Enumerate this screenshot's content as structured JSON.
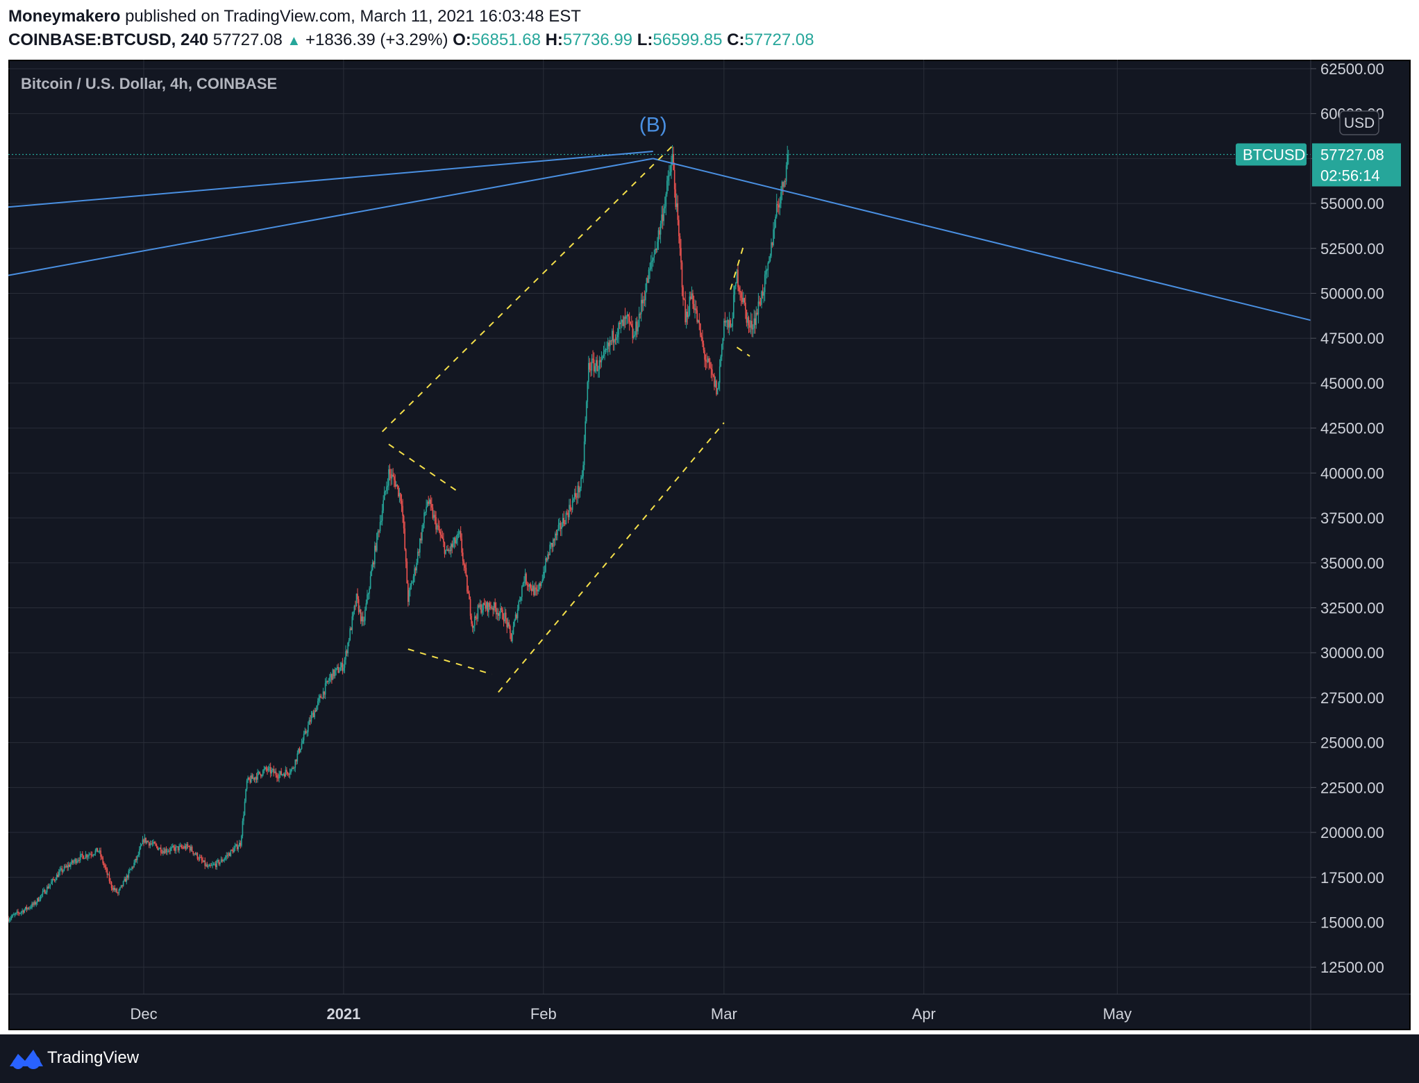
{
  "header": {
    "author": "Moneymakero",
    "published_text": "published on TradingView.com, March 11, 2021 16:03:48 EST",
    "symbol": "COINBASE:BTCUSD, 240",
    "last_price": "57727.08",
    "change": "+1836.39 (+3.29%)",
    "open_label": "O:",
    "open_value": "56851.68",
    "high_label": "H:",
    "high_value": "57736.99",
    "low_label": "L:",
    "low_value": "56599.85",
    "close_label": "C:",
    "close_value": "57727.08"
  },
  "footer": {
    "brand": "TradingView"
  },
  "colors": {
    "background": "#131722",
    "grid": "#2a2e39",
    "up": "#26a69a",
    "down": "#ef5350",
    "trendline": "#4a90e2",
    "pattern": "#f5e04a",
    "text": "#d1d4dc"
  },
  "chart_data": {
    "type": "candlestick",
    "title": "Bitcoin / U.S. Dollar, 4h, COINBASE",
    "currency": "USD",
    "ylim": [
      11000,
      63000
    ],
    "xlim": [
      "2020-11-10",
      "2021-05-31"
    ],
    "y_ticks": [
      "12500.00",
      "15000.00",
      "17500.00",
      "20000.00",
      "22500.00",
      "25000.00",
      "27500.00",
      "30000.00",
      "32500.00",
      "35000.00",
      "37500.00",
      "40000.00",
      "42500.00",
      "45000.00",
      "47500.00",
      "50000.00",
      "52500.00",
      "55000.00",
      "57500.00",
      "60000.00",
      "62500.00"
    ],
    "x_ticks": [
      {
        "label": "Dec",
        "date": "2020-12-01"
      },
      {
        "label": "2021",
        "date": "2021-01-01"
      },
      {
        "label": "Feb",
        "date": "2021-02-01"
      },
      {
        "label": "Mar",
        "date": "2021-03-01"
      },
      {
        "label": "Apr",
        "date": "2021-04-01"
      },
      {
        "label": "May",
        "date": "2021-05-01"
      }
    ],
    "price_keypoints": [
      [
        "2020-11-10",
        15200
      ],
      [
        "2020-11-14",
        16000
      ],
      [
        "2020-11-18",
        17800
      ],
      [
        "2020-11-21",
        18600
      ],
      [
        "2020-11-24",
        19000
      ],
      [
        "2020-11-26",
        17000
      ],
      [
        "2020-11-27",
        16600
      ],
      [
        "2020-11-30",
        18600
      ],
      [
        "2020-12-01",
        19600
      ],
      [
        "2020-12-04",
        19000
      ],
      [
        "2020-12-08",
        19200
      ],
      [
        "2020-12-11",
        18000
      ],
      [
        "2020-12-13",
        18400
      ],
      [
        "2020-12-16",
        19400
      ],
      [
        "2020-12-17",
        22800
      ],
      [
        "2020-12-20",
        23500
      ],
      [
        "2020-12-22",
        23200
      ],
      [
        "2020-12-24",
        23500
      ],
      [
        "2020-12-27",
        26400
      ],
      [
        "2020-12-30",
        28700
      ],
      [
        "2021-01-01",
        29300
      ],
      [
        "2021-01-03",
        33000
      ],
      [
        "2021-01-04",
        31500
      ],
      [
        "2021-01-06",
        36000
      ],
      [
        "2021-01-08",
        40000
      ],
      [
        "2021-01-09",
        39500
      ],
      [
        "2021-01-10",
        38500
      ],
      [
        "2021-01-11",
        33000
      ],
      [
        "2021-01-12",
        34500
      ],
      [
        "2021-01-14",
        38500
      ],
      [
        "2021-01-15",
        37500
      ],
      [
        "2021-01-17",
        35500
      ],
      [
        "2021-01-19",
        36500
      ],
      [
        "2021-01-21",
        31500
      ],
      [
        "2021-01-22",
        32500
      ],
      [
        "2021-01-24",
        32600
      ],
      [
        "2021-01-26",
        32000
      ],
      [
        "2021-01-27",
        30800
      ],
      [
        "2021-01-29",
        34200
      ],
      [
        "2021-01-31",
        33200
      ],
      [
        "2021-02-02",
        35800
      ],
      [
        "2021-02-05",
        38000
      ],
      [
        "2021-02-07",
        39500
      ],
      [
        "2021-02-08",
        46000
      ],
      [
        "2021-02-10",
        46000
      ],
      [
        "2021-02-12",
        47800
      ],
      [
        "2021-02-14",
        48500
      ],
      [
        "2021-02-15",
        47500
      ],
      [
        "2021-02-17",
        50500
      ],
      [
        "2021-02-19",
        53500
      ],
      [
        "2021-02-21",
        57500
      ],
      [
        "2021-02-22",
        53000
      ],
      [
        "2021-02-23",
        48500
      ],
      [
        "2021-02-24",
        50000
      ],
      [
        "2021-02-26",
        46500
      ],
      [
        "2021-02-28",
        44500
      ],
      [
        "2021-03-01",
        48500
      ],
      [
        "2021-03-02",
        48000
      ],
      [
        "2021-03-03",
        51000
      ],
      [
        "2021-03-04",
        49500
      ],
      [
        "2021-03-05",
        48000
      ],
      [
        "2021-03-06",
        48800
      ],
      [
        "2021-03-08",
        51500
      ],
      [
        "2021-03-09",
        54500
      ],
      [
        "2021-03-10",
        55800
      ],
      [
        "2021-03-11",
        57727
      ]
    ],
    "current_price": 57727.08,
    "price_badge": {
      "symbol": "BTCUSD",
      "price": "57727.08",
      "countdown": "02:56:14"
    },
    "annotations": [
      {
        "type": "label",
        "text": "(B)",
        "x": "2021-02-18",
        "y": 59000
      }
    ],
    "trendlines": [
      {
        "color": "blue",
        "from": [
          "2020-11-10",
          54800
        ],
        "to": [
          "2021-02-18",
          57900
        ]
      },
      {
        "color": "blue",
        "from": [
          "2020-11-10",
          51000
        ],
        "to": [
          "2021-02-18",
          57500
        ]
      },
      {
        "color": "blue",
        "from": [
          "2021-02-18",
          57500
        ],
        "to": [
          "2021-05-31",
          48500
        ]
      }
    ],
    "pattern_lines": [
      {
        "color": "yellow",
        "style": "dashed",
        "from": [
          "2021-01-07",
          42300
        ],
        "to": [
          "2021-02-21",
          58200
        ]
      },
      {
        "color": "yellow",
        "style": "dashed",
        "from": [
          "2021-01-25",
          27800
        ],
        "to": [
          "2021-03-01",
          42800
        ]
      },
      {
        "color": "yellow",
        "style": "dashed",
        "from": [
          "2021-01-08",
          41600
        ],
        "to": [
          "2021-01-19",
          38900
        ]
      },
      {
        "color": "yellow",
        "style": "dashed",
        "from": [
          "2021-01-11",
          30200
        ],
        "to": [
          "2021-01-24",
          28800
        ]
      },
      {
        "color": "yellow",
        "style": "dashed",
        "from": [
          "2021-03-02",
          50200
        ],
        "to": [
          "2021-03-04",
          52600
        ]
      },
      {
        "color": "yellow",
        "style": "dashed",
        "from": [
          "2021-03-03",
          47000
        ],
        "to": [
          "2021-03-05",
          46500
        ]
      }
    ]
  }
}
